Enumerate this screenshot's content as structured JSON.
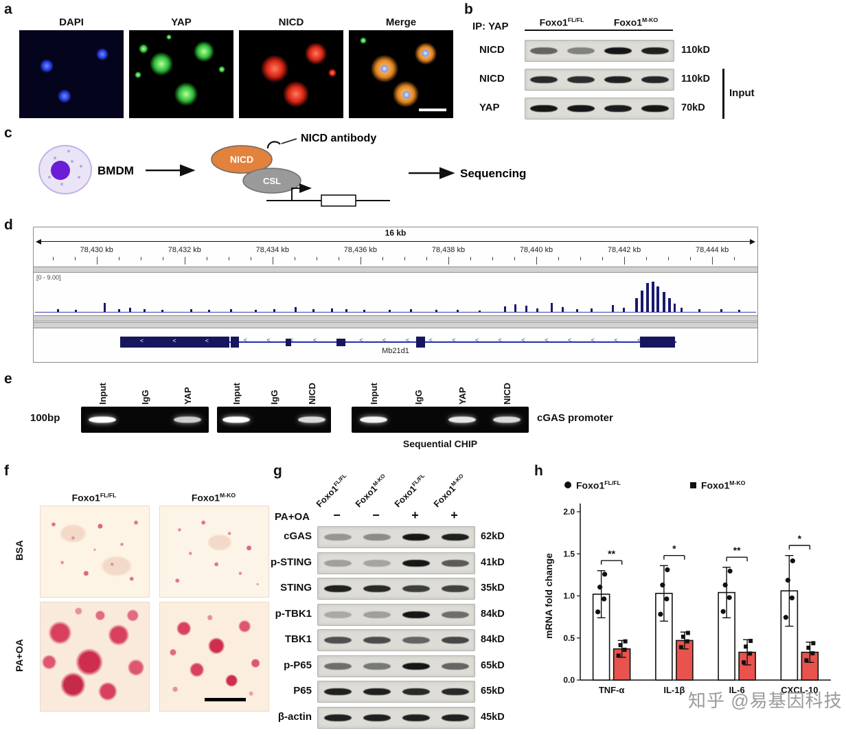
{
  "panel_a": {
    "label": "a",
    "titles": [
      "DAPI",
      "YAP",
      "NICD",
      "Merge"
    ]
  },
  "panel_b": {
    "label": "b",
    "ip_label": "IP: YAP",
    "groups": [
      {
        "base": "Foxo1",
        "sup": "FL/FL"
      },
      {
        "base": "Foxo1",
        "sup": "M-KO"
      }
    ],
    "rows": [
      {
        "name": "NICD",
        "kd": "110kD",
        "bands": [
          0.6,
          0.45,
          1,
          0.95
        ]
      },
      {
        "name": "NICD",
        "kd": "110kD",
        "bands": [
          0.9,
          0.88,
          0.95,
          0.92
        ]
      },
      {
        "name": "YAP",
        "kd": "70kD",
        "bands": [
          1,
          1,
          0.97,
          1
        ]
      }
    ],
    "input_label": "Input"
  },
  "panel_c": {
    "label": "c",
    "bmdm_label": "BMDM",
    "nicd_label": "NICD",
    "csl_label": "CSL",
    "antibody_label": "NICD antibody",
    "sequencing_label": "Sequencing"
  },
  "panel_d": {
    "label": "d",
    "scale_label": "16 kb",
    "coordinates": [
      "78,430 kb",
      "78,432 kb",
      "78,434 kb",
      "78,436 kb",
      "78,438 kb",
      "78,440 kb",
      "78,442 kb",
      "78,444 kb"
    ],
    "range_label": "[0 - 9.00]",
    "gene_label": "Mb21d1",
    "peaks": [
      {
        "x": 0.03,
        "h": 0.1
      },
      {
        "x": 0.055,
        "h": 0.07
      },
      {
        "x": 0.095,
        "h": 0.3
      },
      {
        "x": 0.115,
        "h": 0.1
      },
      {
        "x": 0.13,
        "h": 0.14
      },
      {
        "x": 0.15,
        "h": 0.08
      },
      {
        "x": 0.175,
        "h": 0.06
      },
      {
        "x": 0.215,
        "h": 0.1
      },
      {
        "x": 0.24,
        "h": 0.07
      },
      {
        "x": 0.27,
        "h": 0.08
      },
      {
        "x": 0.305,
        "h": 0.06
      },
      {
        "x": 0.33,
        "h": 0.1
      },
      {
        "x": 0.36,
        "h": 0.16
      },
      {
        "x": 0.385,
        "h": 0.09
      },
      {
        "x": 0.41,
        "h": 0.12
      },
      {
        "x": 0.43,
        "h": 0.1
      },
      {
        "x": 0.455,
        "h": 0.07
      },
      {
        "x": 0.49,
        "h": 0.06
      },
      {
        "x": 0.52,
        "h": 0.09
      },
      {
        "x": 0.555,
        "h": 0.07
      },
      {
        "x": 0.585,
        "h": 0.06
      },
      {
        "x": 0.615,
        "h": 0.05
      },
      {
        "x": 0.65,
        "h": 0.18
      },
      {
        "x": 0.665,
        "h": 0.25
      },
      {
        "x": 0.68,
        "h": 0.2
      },
      {
        "x": 0.695,
        "h": 0.12
      },
      {
        "x": 0.715,
        "h": 0.3
      },
      {
        "x": 0.73,
        "h": 0.16
      },
      {
        "x": 0.75,
        "h": 0.1
      },
      {
        "x": 0.77,
        "h": 0.12
      },
      {
        "x": 0.8,
        "h": 0.22
      },
      {
        "x": 0.815,
        "h": 0.14
      },
      {
        "x": 0.832,
        "h": 0.45
      },
      {
        "x": 0.84,
        "h": 0.7
      },
      {
        "x": 0.848,
        "h": 0.95
      },
      {
        "x": 0.855,
        "h": 1.0
      },
      {
        "x": 0.862,
        "h": 0.85
      },
      {
        "x": 0.87,
        "h": 0.65
      },
      {
        "x": 0.878,
        "h": 0.45
      },
      {
        "x": 0.886,
        "h": 0.28
      },
      {
        "x": 0.895,
        "h": 0.14
      },
      {
        "x": 0.92,
        "h": 0.08
      },
      {
        "x": 0.95,
        "h": 0.1
      },
      {
        "x": 0.975,
        "h": 0.06
      }
    ],
    "exons": [
      {
        "x": 0.12,
        "w": 0.15,
        "tall": true
      },
      {
        "x": 0.272,
        "w": 0.012,
        "tall": true
      },
      {
        "x": 0.348,
        "w": 0.008,
        "tall": false
      },
      {
        "x": 0.418,
        "w": 0.013,
        "tall": false
      },
      {
        "x": 0.528,
        "w": 0.013,
        "tall": true
      },
      {
        "x": 0.838,
        "w": 0.048,
        "tall": true
      }
    ]
  },
  "panel_e": {
    "label": "e",
    "size_label": "100bp",
    "gels": [
      {
        "lanes": [
          "Input",
          "IgG",
          "YAP"
        ],
        "bands": [
          1,
          0,
          0.8
        ]
      },
      {
        "lanes": [
          "Input",
          "IgG",
          "NICD"
        ],
        "bands": [
          1,
          0,
          0.85
        ]
      },
      {
        "lanes": [
          "Input",
          "IgG",
          "YAP",
          "NICD"
        ],
        "bands": [
          0.95,
          0,
          0.9,
          0.85
        ]
      }
    ],
    "right_label": "cGAS promoter",
    "bottom_label": "Sequential CHIP"
  },
  "panel_f": {
    "label": "f",
    "col_headers": [
      {
        "base": "Foxo1",
        "sup": "FL/FL"
      },
      {
        "base": "Foxo1",
        "sup": "M-KO"
      }
    ],
    "row_headers": [
      "BSA",
      "PA+OA"
    ]
  },
  "panel_g": {
    "label": "g",
    "lane_headers": [
      {
        "base": "Foxo1",
        "sup": "FL/FL"
      },
      {
        "base": "Foxo1",
        "sup": "M-KO"
      },
      {
        "base": "Foxo1",
        "sup": "FL/FL"
      },
      {
        "base": "Foxo1",
        "sup": "M-KO"
      }
    ],
    "treatment_label": "PA+OA",
    "treatment_signs": [
      "−",
      "−",
      "+",
      "+"
    ],
    "rows": [
      {
        "name": "cGAS",
        "kd": "62kD",
        "bands": [
          0.35,
          0.4,
          1,
          0.95
        ]
      },
      {
        "name": "p-STING",
        "kd": "41kD",
        "bands": [
          0.3,
          0.28,
          1,
          0.65
        ]
      },
      {
        "name": "STING",
        "kd": "35kD",
        "bands": [
          0.95,
          0.9,
          0.8,
          0.78
        ]
      },
      {
        "name": "p-TBK1",
        "kd": "84kD",
        "bands": [
          0.25,
          0.3,
          1,
          0.55
        ]
      },
      {
        "name": "TBK1",
        "kd": "84kD",
        "bands": [
          0.7,
          0.72,
          0.6,
          0.75
        ]
      },
      {
        "name": "p-P65",
        "kd": "65kD",
        "bands": [
          0.55,
          0.5,
          1,
          0.6
        ]
      },
      {
        "name": "P65",
        "kd": "65kD",
        "bands": [
          0.95,
          0.95,
          0.9,
          0.9
        ]
      },
      {
        "name": "β-actin",
        "kd": "45kD",
        "bands": [
          0.95,
          0.95,
          0.95,
          0.95
        ]
      }
    ]
  },
  "panel_h": {
    "label": "h"
  },
  "chart_data": {
    "type": "bar",
    "title": "",
    "ylabel": "mRNA fold change",
    "ylim": [
      0,
      2
    ],
    "yticks": [
      0,
      0.5,
      1,
      1.5,
      2
    ],
    "categories": [
      "TNF-α",
      "IL-1β",
      "IL-6",
      "CXCL-10"
    ],
    "series": [
      {
        "name": "Foxo1FL/FL",
        "marker": "circle",
        "fill": "#ffffff",
        "values": [
          1.02,
          1.03,
          1.04,
          1.06
        ],
        "errors": [
          0.28,
          0.33,
          0.3,
          0.42
        ]
      },
      {
        "name": "Foxo1M-KO",
        "marker": "square",
        "fill": "#e8534e",
        "values": [
          0.37,
          0.47,
          0.33,
          0.33
        ],
        "errors": [
          0.1,
          0.1,
          0.15,
          0.12
        ]
      }
    ],
    "significance": [
      "**",
      "*",
      "**",
      "*"
    ],
    "legend": [
      {
        "base": "Foxo1",
        "sup": "FL/FL"
      },
      {
        "base": "Foxo1",
        "sup": "M-KO"
      }
    ],
    "legend_position": "top",
    "grid": false
  },
  "watermark": "知乎 @易基因科技"
}
